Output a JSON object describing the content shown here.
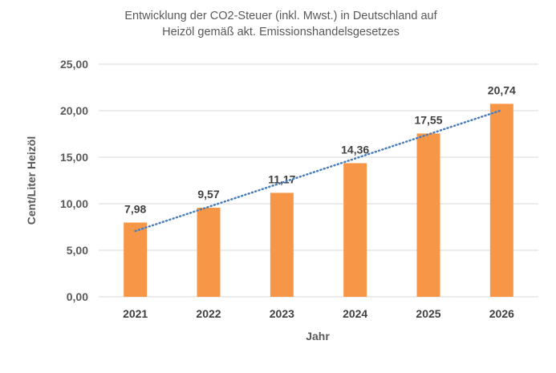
{
  "chart_data": {
    "type": "bar",
    "title_lines": [
      "Entwicklung der CO2-Steuer (inkl. Mwst.) in Deutschland auf",
      "Heizöl gemäß akt. Emissionshandelsgesetzes"
    ],
    "categories": [
      "2021",
      "2022",
      "2023",
      "2024",
      "2025",
      "2026"
    ],
    "values": [
      7.98,
      9.57,
      11.17,
      14.36,
      17.55,
      20.74
    ],
    "data_labels": [
      "7,98",
      "9,57",
      "11,17",
      "14,36",
      "17,55",
      "20,74"
    ],
    "xlabel": "Jahr",
    "ylabel": "Cent/Liter Heizöl",
    "ylim": [
      0,
      25
    ],
    "yticks": [
      0,
      5,
      10,
      15,
      20,
      25
    ],
    "ytick_labels": [
      "0,00",
      "5,00",
      "10,00",
      "15,00",
      "20,00",
      "25,00"
    ],
    "grid": true,
    "trendline": "linear",
    "colors": {
      "bar": "#F79646",
      "trendline": "#4A7EBB",
      "grid": "#D9D9D9",
      "text": "#595959"
    }
  }
}
